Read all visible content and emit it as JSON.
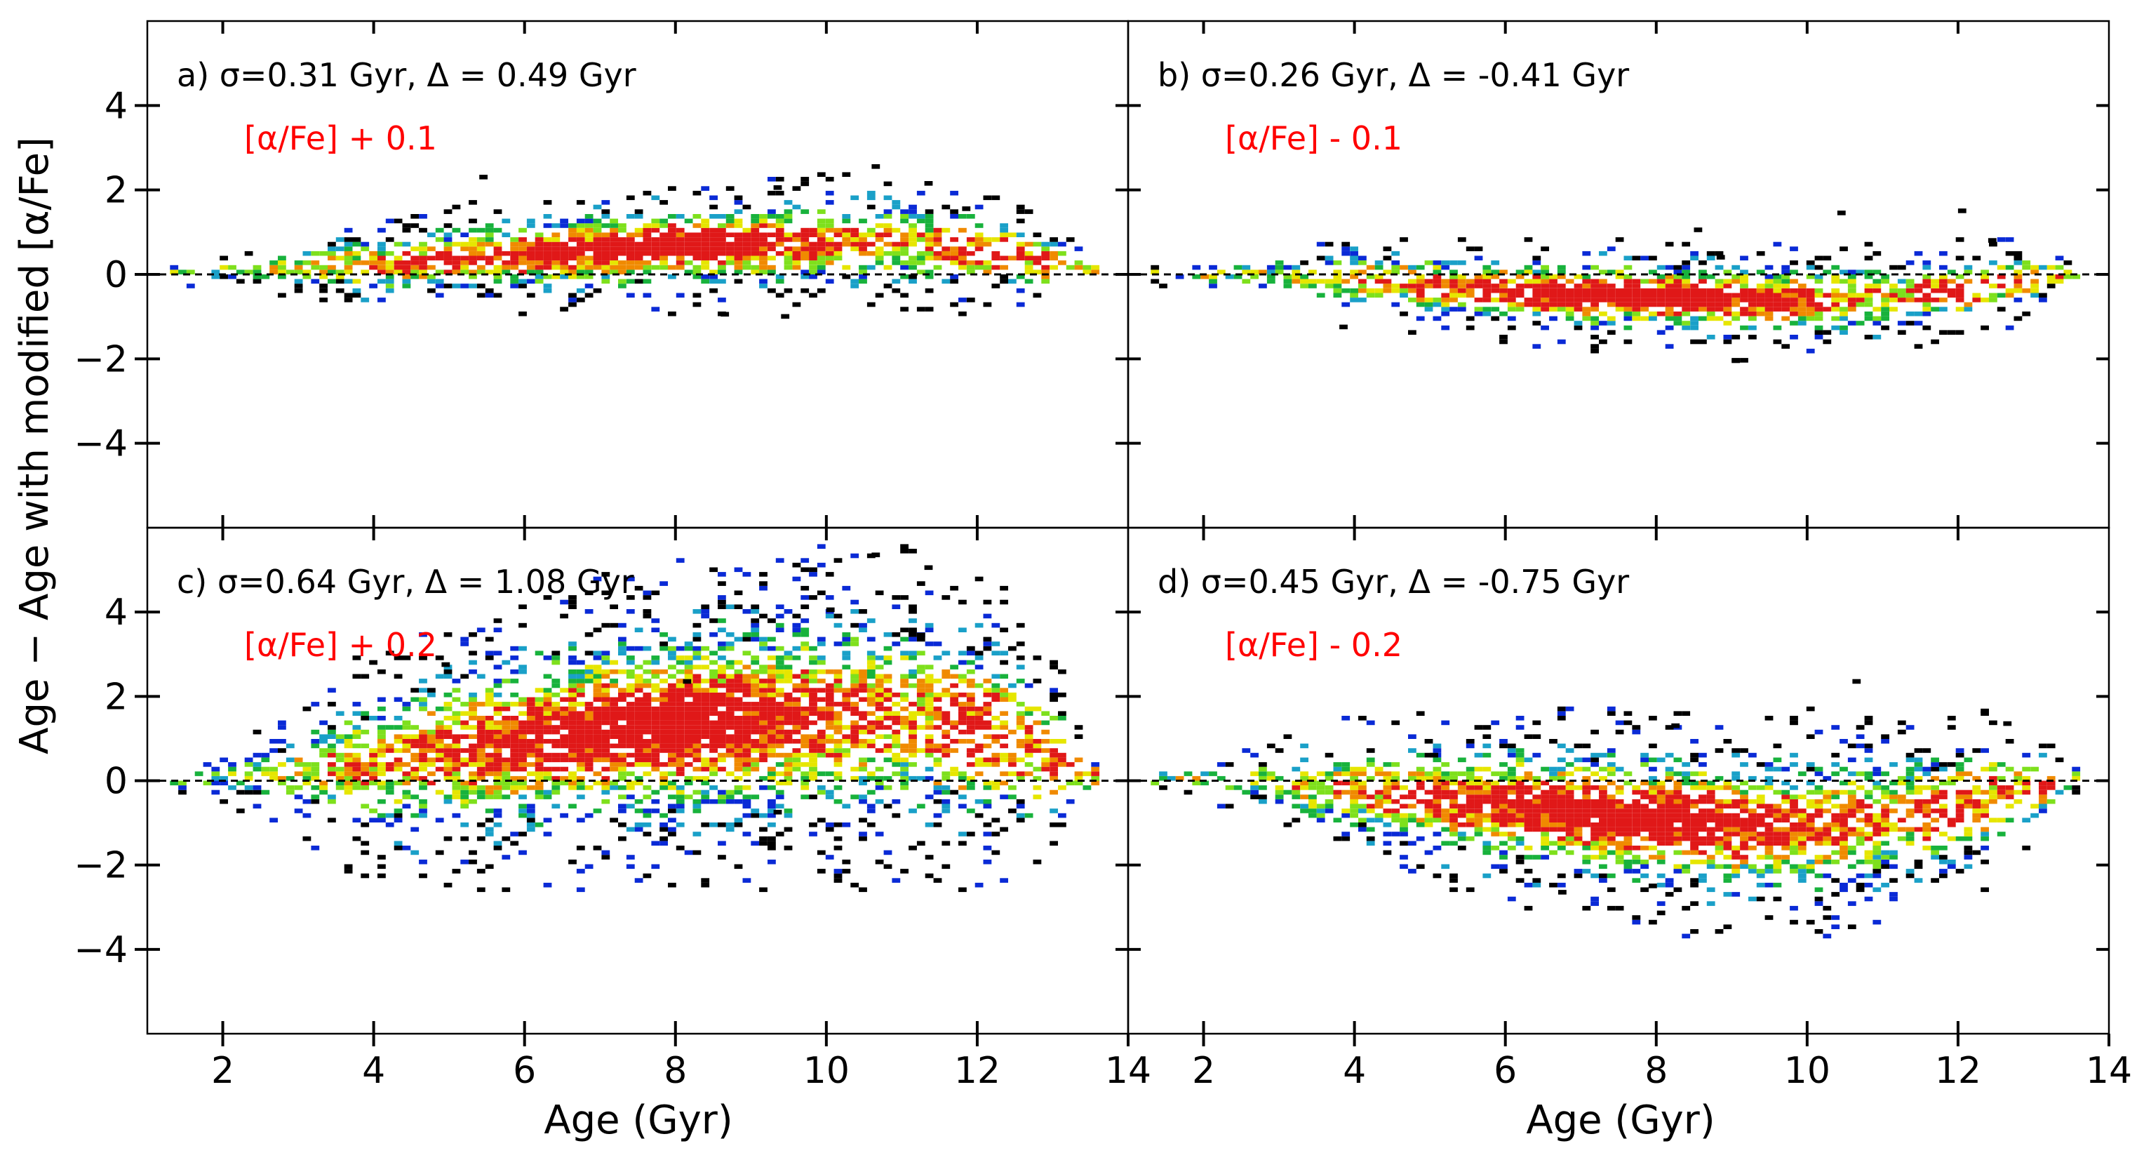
{
  "figure": {
    "ylabel": "Age − Age with modified [α/Fe]",
    "xlabel": "Age (Gyr)"
  },
  "axes": {
    "xlim": [
      1,
      14
    ],
    "ylim": [
      -6,
      6
    ],
    "xticks": [
      2,
      4,
      6,
      8,
      10,
      12,
      14
    ],
    "xtick_labels": [
      "2",
      "4",
      "6",
      "8",
      "10",
      "12",
      "14"
    ],
    "yticks": [
      4,
      2,
      0,
      -2,
      -4
    ],
    "ytick_labels": [
      "4",
      "2",
      "0",
      "−2",
      "−4"
    ],
    "reference_line": 0
  },
  "colors": {
    "annotation_red": "#ff0000",
    "density_scale": [
      "#000000",
      "#0a2ad6",
      "#1aa0c8",
      "#18b23c",
      "#7ee01c",
      "#e6e600",
      "#f08a00",
      "#e01818"
    ]
  },
  "chart_data": [
    {
      "type": "heatmap",
      "panel": "a",
      "stats": "a) σ=0.31 Gyr, Δ = 0.49 Gyr",
      "modification": "[α/Fe] + 0.1",
      "xlim": [
        1,
        14
      ],
      "ylim": [
        -6,
        6
      ],
      "trend": {
        "x": [
          1.0,
          2.5,
          4.0,
          6.0,
          8.0,
          10.0,
          11.0,
          12.0,
          13.0,
          13.6
        ],
        "y": [
          0.0,
          0.05,
          0.2,
          0.4,
          0.6,
          0.7,
          0.7,
          0.5,
          0.2,
          0.0
        ]
      },
      "spread": 0.31,
      "outliers": [
        [
          5.4,
          2.25
        ],
        [
          10.6,
          2.5
        ],
        [
          11.3,
          2.1
        ],
        [
          9.3,
          2.0
        ],
        [
          8.6,
          -1.0
        ],
        [
          9.4,
          -1.05
        ],
        [
          11.8,
          1.5
        ]
      ]
    },
    {
      "type": "heatmap",
      "panel": "b",
      "stats": "b) σ=0.26 Gyr, Δ = -0.41 Gyr",
      "modification": "[α/Fe] - 0.1",
      "xlim": [
        1,
        14
      ],
      "ylim": [
        -6,
        6
      ],
      "trend": {
        "x": [
          1.0,
          2.5,
          4.0,
          6.0,
          8.0,
          9.0,
          10.0,
          11.0,
          12.0,
          13.0,
          13.6
        ],
        "y": [
          0.0,
          -0.05,
          -0.2,
          -0.45,
          -0.6,
          -0.65,
          -0.65,
          -0.55,
          -0.4,
          -0.15,
          0.0
        ]
      },
      "spread": 0.26,
      "outliers": [
        [
          8.5,
          1.0
        ],
        [
          10.4,
          1.4
        ],
        [
          12.0,
          1.45
        ],
        [
          12.4,
          0.75
        ],
        [
          9.0,
          -2.1
        ],
        [
          3.8,
          -1.3
        ],
        [
          8.8,
          0.35
        ]
      ]
    },
    {
      "type": "heatmap",
      "panel": "c",
      "stats": "c) σ=0.64 Gyr, Δ = 1.08 Gyr",
      "modification": "[α/Fe] + 0.2",
      "xlim": [
        1,
        14
      ],
      "ylim": [
        -6,
        6
      ],
      "trend": {
        "x": [
          1.0,
          2.5,
          4.0,
          6.0,
          8.0,
          10.0,
          11.0,
          12.0,
          13.0,
          13.6
        ],
        "y": [
          0.0,
          0.1,
          0.4,
          0.9,
          1.25,
          1.5,
          1.45,
          1.1,
          0.5,
          0.0
        ]
      },
      "spread": 0.64,
      "outliers": [
        [
          10.6,
          5.3
        ],
        [
          11.3,
          5.0
        ],
        [
          10.0,
          4.0
        ],
        [
          4.9,
          2.7
        ],
        [
          9.3,
          -0.8
        ],
        [
          11.2,
          3.4
        ],
        [
          8.1,
          2.3
        ]
      ]
    },
    {
      "type": "heatmap",
      "panel": "d",
      "stats": "d) σ=0.45 Gyr, Δ = -0.75 Gyr",
      "modification": "[α/Fe] - 0.2",
      "xlim": [
        1,
        14
      ],
      "ylim": [
        -6,
        6
      ],
      "trend": {
        "x": [
          1.0,
          2.5,
          4.0,
          6.0,
          8.0,
          9.0,
          10.0,
          11.0,
          12.0,
          13.0,
          13.6
        ],
        "y": [
          0.0,
          -0.05,
          -0.3,
          -0.65,
          -1.0,
          -1.1,
          -1.15,
          -0.95,
          -0.65,
          -0.25,
          0.0
        ]
      },
      "spread": 0.45,
      "outliers": [
        [
          10.6,
          2.3
        ],
        [
          8.2,
          1.25
        ],
        [
          12.3,
          1.6
        ],
        [
          5.0,
          0.55
        ],
        [
          7.9,
          -2.55
        ],
        [
          6.7,
          -2.7
        ],
        [
          12.6,
          1.3
        ]
      ]
    }
  ]
}
